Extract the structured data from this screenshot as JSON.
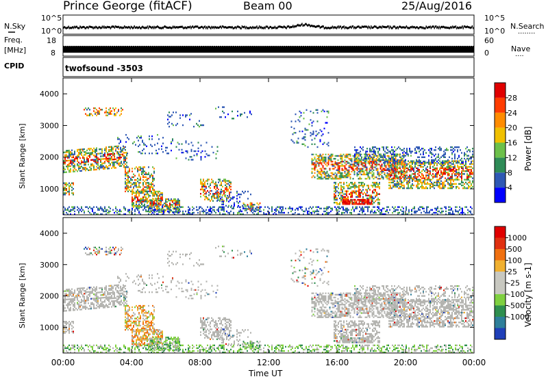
{
  "header": {
    "station": "Prince George (fitACF)",
    "beam": "Beam 00",
    "date": "25/Aug/2016"
  },
  "nsky_panel": {
    "left_label": "N.Sky",
    "right_label": "N.Search",
    "right_dots": "........",
    "ticks": [
      "10^5",
      "10^0"
    ],
    "right_ticks": [
      "10^5",
      "10^0"
    ]
  },
  "freq_panel": {
    "left_label_1": "Freq.",
    "left_label_2": "[MHz]",
    "ticks": [
      "18",
      "8"
    ],
    "right_label": "Nave",
    "right_dots": "....",
    "right_ticks": [
      "60",
      "0"
    ]
  },
  "cpid_panel": {
    "left_label": "CPID",
    "program": "twofsound -3503"
  },
  "chart_data": [
    {
      "type": "heatmap",
      "title": "Power",
      "ylabel": "Slant Range [km]",
      "xlabel": "Time UT",
      "ylim": [
        180,
        4500
      ],
      "y_ticks": [
        "4000",
        "3000",
        "2000",
        "1000"
      ],
      "x_ticks": [
        "00:00",
        "04:00",
        "08:00",
        "12:00",
        "16:00",
        "20:00",
        "00:00"
      ],
      "colorbar": {
        "label": "Power [dB]",
        "ticks": [
          "28",
          "24",
          "20",
          "16",
          "12",
          "8",
          "4"
        ],
        "colors": [
          "#0000ff",
          "#2e58b4",
          "#2e8b57",
          "#6cc04a",
          "#f0c000",
          "#ff8c00",
          "#ff3c00",
          "#e00000"
        ]
      }
    },
    {
      "type": "heatmap",
      "title": "Velocity",
      "ylabel": "Slant Range [km]",
      "xlabel": "Time UT",
      "ylim": [
        180,
        4500
      ],
      "y_ticks": [
        "4000",
        "3000",
        "2000",
        "1000"
      ],
      "x_ticks": [
        "00:00",
        "04:00",
        "08:00",
        "12:00",
        "16:00",
        "20:00",
        "00:00"
      ],
      "colorbar": {
        "label": "Velocity [m s-1]",
        "ticks": [
          "1000",
          "500",
          "100",
          "25",
          "-25",
          "-100",
          "-500",
          "-1000"
        ],
        "colors": [
          "#1f3fb8",
          "#2e7f9a",
          "#2f8f4f",
          "#7fd040",
          "#c8c8c0",
          "#c8c8c0",
          "#f0b030",
          "#f07010",
          "#e03010",
          "#e00000"
        ]
      }
    }
  ],
  "xlabel_text": "Time UT",
  "colors": {
    "ground_scatter": "#b4b4b0"
  }
}
